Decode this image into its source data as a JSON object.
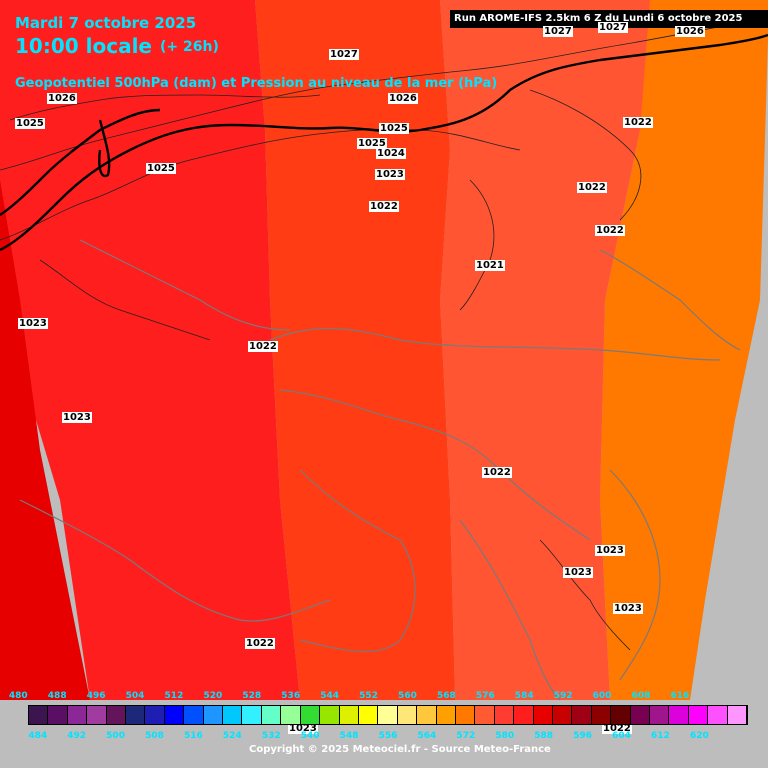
{
  "title": {
    "date": "Mardi 7 octobre 2025",
    "time": "10:00 locale",
    "lead": "(+ 26h)",
    "variable": "Geopotentiel 500hPa (dam) et Pression au niveau de la mer (hPa)"
  },
  "run": "Run AROME-IFS 2.5km 6 Z du Lundi 6 octobre 2025",
  "copyright": "Copyright © 2025 Meteociel.fr - Source Meteo-France",
  "isobar_labels": [
    "1027",
    "1027",
    "1027",
    "1026",
    "1026",
    "1026",
    "1025",
    "1025",
    "1025",
    "1025",
    "1024",
    "1023",
    "1022",
    "1022",
    "1022",
    "1022",
    "1021",
    "1023",
    "1022",
    "1023",
    "1022",
    "1023",
    "1023",
    "1023",
    "1022",
    "1023",
    "1022"
  ],
  "scale_top": [
    "480",
    "488",
    "496",
    "504",
    "512",
    "520",
    "528",
    "536",
    "544",
    "552",
    "560",
    "568",
    "576",
    "584",
    "592",
    "600",
    "608",
    "616"
  ],
  "scale_bottom": [
    "484",
    "492",
    "500",
    "508",
    "516",
    "524",
    "532",
    "540",
    "548",
    "556",
    "564",
    "572",
    "580",
    "588",
    "596",
    "604",
    "612",
    "620"
  ],
  "scale_colors": [
    "#3c1450",
    "#5a0f64",
    "#8c2896",
    "#a03ca0",
    "#64145a",
    "#1e2878",
    "#1e1eb4",
    "#0000ff",
    "#0050ff",
    "#1e96ff",
    "#00c8ff",
    "#32f0ff",
    "#64ffc8",
    "#96ff96",
    "#32dc32",
    "#96e600",
    "#dcf000",
    "#ffff00",
    "#ffff96",
    "#ffe678",
    "#ffc83c",
    "#ffa000",
    "#ff7800",
    "#ff5a32",
    "#ff3c32",
    "#ff1e1e",
    "#e60000",
    "#c80000",
    "#a00014",
    "#8c0000",
    "#640000",
    "#780050",
    "#a0148c",
    "#dc00dc",
    "#ff00ff",
    "#ff50ff",
    "#ff96ff"
  ]
}
